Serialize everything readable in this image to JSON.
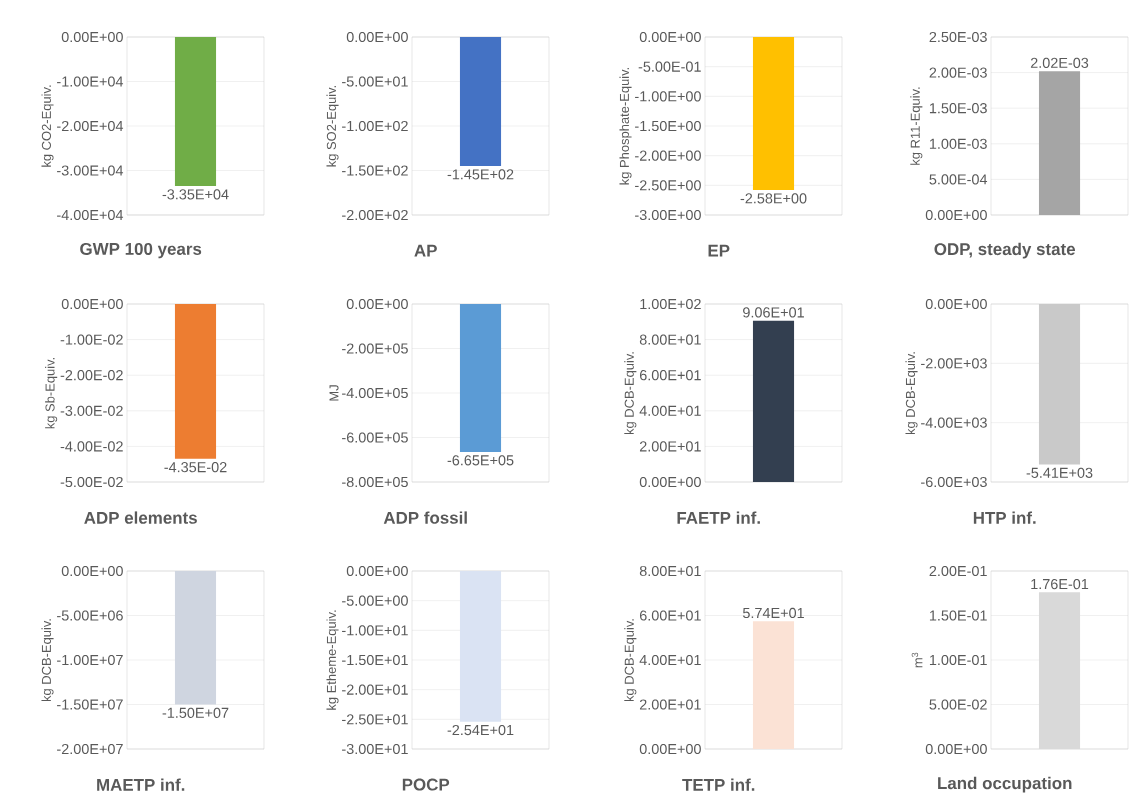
{
  "chart_data": [
    {
      "type": "bar",
      "xlabel": "GWP 100 years",
      "ylabel": "kg CO2-Equiv.",
      "categories": [
        null
      ],
      "values": [
        -33500
      ],
      "color": "#70ad47",
      "value_labels": [
        "-3.35E+04"
      ],
      "ylim": [
        -40000,
        0
      ],
      "yticks": [
        {
          "value": -40000,
          "label": "-4.00E+04"
        },
        {
          "value": -30000,
          "label": "-3.00E+04"
        },
        {
          "value": -20000,
          "label": "-2.00E+04"
        },
        {
          "value": -10000,
          "label": "-1.00E+04"
        },
        {
          "value": 0,
          "label": "0.00E+00"
        }
      ],
      "grid": "y"
    },
    {
      "type": "bar",
      "xlabel": "AP",
      "ylabel": "kg SO2-Equiv.",
      "categories": [
        null
      ],
      "values": [
        -145
      ],
      "color": "#4472c4",
      "value_labels": [
        "-1.45E+02"
      ],
      "ylim": [
        -200,
        0
      ],
      "yticks": [
        {
          "value": -200,
          "label": "-2.00E+02"
        },
        {
          "value": -150,
          "label": "-1.50E+02"
        },
        {
          "value": -100,
          "label": "-1.00E+02"
        },
        {
          "value": -50,
          "label": "-5.00E+01"
        },
        {
          "value": 0,
          "label": "0.00E+00"
        }
      ],
      "grid": "y"
    },
    {
      "type": "bar",
      "xlabel": "EP",
      "ylabel": "kg Phosphate-Equiv.",
      "categories": [
        null
      ],
      "values": [
        -2.58
      ],
      "color": "#ffc000",
      "value_labels": [
        "-2.58E+00"
      ],
      "ylim": [
        -3,
        0
      ],
      "yticks": [
        {
          "value": -3,
          "label": "-3.00E+00"
        },
        {
          "value": -2.5,
          "label": "-2.50E+00"
        },
        {
          "value": -2,
          "label": "-2.00E+00"
        },
        {
          "value": -1.5,
          "label": "-1.50E+00"
        },
        {
          "value": -1,
          "label": "-1.00E+00"
        },
        {
          "value": -0.5,
          "label": "-5.00E-01"
        },
        {
          "value": 0,
          "label": "0.00E+00"
        }
      ],
      "grid": "y"
    },
    {
      "type": "bar",
      "xlabel": "ODP, steady state",
      "ylabel": "kg R11-Equiv.",
      "categories": [
        null
      ],
      "values": [
        0.00202
      ],
      "color": "#a5a5a5",
      "value_labels": [
        "2.02E-03"
      ],
      "ylim": [
        0,
        0.0025
      ],
      "yticks": [
        {
          "value": 0,
          "label": "0.00E+00"
        },
        {
          "value": 0.0005,
          "label": "5.00E-04"
        },
        {
          "value": 0.001,
          "label": "1.00E-03"
        },
        {
          "value": 0.0015,
          "label": "1.50E-03"
        },
        {
          "value": 0.002,
          "label": "2.00E-03"
        },
        {
          "value": 0.0025,
          "label": "2.50E-03"
        }
      ],
      "grid": "y"
    },
    {
      "type": "bar",
      "xlabel": "ADP elements",
      "ylabel": "kg Sb-Equiv.",
      "categories": [
        null
      ],
      "values": [
        -0.0435
      ],
      "color": "#ed7d31",
      "value_labels": [
        "-4.35E-02"
      ],
      "ylim": [
        -0.05,
        0
      ],
      "yticks": [
        {
          "value": -0.05,
          "label": "-5.00E-02"
        },
        {
          "value": -0.04,
          "label": "-4.00E-02"
        },
        {
          "value": -0.03,
          "label": "-3.00E-02"
        },
        {
          "value": -0.02,
          "label": "-2.00E-02"
        },
        {
          "value": -0.01,
          "label": "-1.00E-02"
        },
        {
          "value": 0,
          "label": "0.00E+00"
        }
      ],
      "grid": "y"
    },
    {
      "type": "bar",
      "xlabel": "ADP fossil",
      "ylabel": "MJ",
      "categories": [
        null
      ],
      "values": [
        -665000
      ],
      "color": "#5b9bd5",
      "value_labels": [
        "-6.65E+05"
      ],
      "ylim": [
        -800000,
        0
      ],
      "yticks": [
        {
          "value": -800000,
          "label": "-8.00E+05"
        },
        {
          "value": -600000,
          "label": "-6.00E+05"
        },
        {
          "value": -400000,
          "label": "-4.00E+05"
        },
        {
          "value": -200000,
          "label": "-2.00E+05"
        },
        {
          "value": 0,
          "label": "0.00E+00"
        }
      ],
      "grid": "y"
    },
    {
      "type": "bar",
      "xlabel": "FAETP inf.",
      "ylabel": "kg DCB-Equiv.",
      "categories": [
        null
      ],
      "values": [
        90.6
      ],
      "color": "#333f50",
      "value_labels": [
        "9.06E+01"
      ],
      "ylim": [
        0,
        100
      ],
      "yticks": [
        {
          "value": 0,
          "label": "0.00E+00"
        },
        {
          "value": 20,
          "label": "2.00E+01"
        },
        {
          "value": 40,
          "label": "4.00E+01"
        },
        {
          "value": 60,
          "label": "6.00E+01"
        },
        {
          "value": 80,
          "label": "8.00E+01"
        },
        {
          "value": 100,
          "label": "1.00E+02"
        }
      ],
      "grid": "y"
    },
    {
      "type": "bar",
      "xlabel": "HTP inf.",
      "ylabel": "kg DCB-Equiv.",
      "categories": [
        null
      ],
      "values": [
        -5410
      ],
      "color": "#c9c9c9",
      "value_labels": [
        "-5.41E+03"
      ],
      "ylim": [
        -6000,
        0
      ],
      "yticks": [
        {
          "value": -6000,
          "label": "-6.00E+03"
        },
        {
          "value": -4000,
          "label": "-4.00E+03"
        },
        {
          "value": -2000,
          "label": "-2.00E+03"
        },
        {
          "value": 0,
          "label": "0.00E+00"
        }
      ],
      "grid": "y"
    },
    {
      "type": "bar",
      "xlabel": "MAETP inf.",
      "ylabel": "kg DCB-Equiv.",
      "categories": [
        null
      ],
      "values": [
        -15000000
      ],
      "color": "#cfd5e0",
      "value_labels": [
        "-1.50E+07"
      ],
      "ylim": [
        -20000000,
        0
      ],
      "yticks": [
        {
          "value": -20000000,
          "label": "-2.00E+07"
        },
        {
          "value": -15000000,
          "label": "-1.50E+07"
        },
        {
          "value": -10000000,
          "label": "-1.00E+07"
        },
        {
          "value": -5000000,
          "label": "-5.00E+06"
        },
        {
          "value": 0,
          "label": "0.00E+00"
        }
      ],
      "grid": "y"
    },
    {
      "type": "bar",
      "xlabel": "POCP",
      "ylabel": "kg Etheme-Equiv.",
      "categories": [
        null
      ],
      "values": [
        -25.4
      ],
      "color": "#dae3f3",
      "value_labels": [
        "-2.54E+01"
      ],
      "ylim": [
        -30,
        0
      ],
      "yticks": [
        {
          "value": -30,
          "label": "-3.00E+01"
        },
        {
          "value": -25,
          "label": "-2.50E+01"
        },
        {
          "value": -20,
          "label": "-2.00E+01"
        },
        {
          "value": -15,
          "label": "-1.50E+01"
        },
        {
          "value": -10,
          "label": "-1.00E+01"
        },
        {
          "value": -5,
          "label": "-5.00E+00"
        },
        {
          "value": 0,
          "label": "0.00E+00"
        }
      ],
      "grid": "y"
    },
    {
      "type": "bar",
      "xlabel": "TETP inf.",
      "ylabel": "kg DCB-Equiv.",
      "categories": [
        null
      ],
      "values": [
        57.4
      ],
      "color": "#fbe2d5",
      "value_labels": [
        "5.74E+01"
      ],
      "ylim": [
        0,
        80
      ],
      "yticks": [
        {
          "value": 0,
          "label": "0.00E+00"
        },
        {
          "value": 20,
          "label": "2.00E+01"
        },
        {
          "value": 40,
          "label": "4.00E+01"
        },
        {
          "value": 60,
          "label": "6.00E+01"
        },
        {
          "value": 80,
          "label": "8.00E+01"
        }
      ],
      "grid": "y"
    },
    {
      "type": "bar",
      "xlabel": "Land occupation",
      "ylabel": "m$^{3}$",
      "categories": [
        null
      ],
      "values": [
        0.176
      ],
      "color": "#d9d9d9",
      "value_labels": [
        "1.76E-01"
      ],
      "ylim": [
        0,
        0.2
      ],
      "yticks": [
        {
          "value": 0,
          "label": "0.00E+00"
        },
        {
          "value": 0.05,
          "label": "5.00E-02"
        },
        {
          "value": 0.1,
          "label": "1.00E-01"
        },
        {
          "value": 0.15,
          "label": "1.50E-01"
        },
        {
          "value": 0.2,
          "label": "2.00E-01"
        }
      ],
      "grid": "y"
    }
  ]
}
